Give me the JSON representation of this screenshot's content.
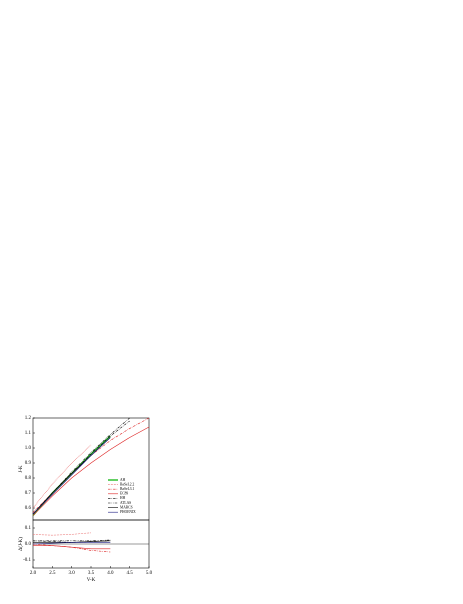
{
  "chart_data": [
    {
      "type": "line",
      "ylabel": "J-K",
      "xlim": [
        2.0,
        5.0
      ],
      "ylim": [
        0.52,
        1.2
      ],
      "yticks": [
        0.6,
        0.7,
        0.8,
        0.9,
        {
          "value": 1.0,
          "label": "1.0"
        },
        1.1,
        1.2
      ],
      "x": [
        2.0,
        2.5,
        3.0,
        3.5,
        4.0,
        4.5,
        5.0
      ],
      "legend": "lower right",
      "series": [
        {
          "name": "AH",
          "color": "#22bb22",
          "style": "thick",
          "values": [
            0.55,
            0.7,
            0.83,
            0.96,
            1.08,
            null,
            null
          ]
        },
        {
          "name": "BaSeL2.2",
          "color": "#dd2222",
          "style": "dotted",
          "values": [
            0.6,
            0.76,
            0.9,
            1.02,
            null,
            null,
            null
          ]
        },
        {
          "name": "BaSeL3.1",
          "color": "#dd2222",
          "style": "dashdot",
          "values": [
            0.57,
            0.7,
            0.83,
            0.95,
            1.05,
            1.13,
            1.2
          ]
        },
        {
          "name": "EC89",
          "color": "#dd2222",
          "style": "solid",
          "values": [
            0.55,
            0.68,
            0.8,
            0.9,
            0.99,
            1.07,
            1.14
          ]
        },
        {
          "name": "HH",
          "color": "#000000",
          "style": "dashdot",
          "values": [
            0.56,
            0.7,
            0.83,
            0.96,
            1.08,
            1.18,
            null
          ]
        },
        {
          "name": "ATLAS",
          "color": "#000000",
          "style": "dashdotdot",
          "values": [
            0.56,
            0.7,
            0.84,
            0.97,
            1.09,
            1.2,
            null
          ]
        },
        {
          "name": "MARCS",
          "color": "#000000",
          "style": "solid",
          "values": [
            0.56,
            0.7,
            0.83,
            0.95,
            1.07,
            null,
            null
          ]
        },
        {
          "name": "PHOENIX",
          "color": "#1a1a80",
          "style": "solid",
          "values": [
            0.56,
            0.69,
            0.82,
            0.95,
            1.07,
            null,
            null
          ]
        }
      ]
    },
    {
      "type": "line",
      "xlabel": "V-K",
      "ylabel": "Δ(J-K)",
      "xlim": [
        2.0,
        5.0
      ],
      "xticks": [
        {
          "value": 2.0,
          "label": "2.0"
        },
        2.5,
        {
          "value": 3.0,
          "label": "3.0"
        },
        3.5,
        {
          "value": 4.0,
          "label": "4.0"
        },
        4.5,
        {
          "value": 5.0,
          "label": "5.0"
        }
      ],
      "ylim": [
        -0.15,
        0.15
      ],
      "yticks": [
        -0.1,
        {
          "value": 0.0,
          "label": "0.0"
        },
        0.1
      ],
      "x": [
        2.0,
        2.5,
        3.0,
        3.5,
        4.0
      ],
      "series": [
        {
          "color": "#dd2222",
          "style": "dotted",
          "values": [
            0.06,
            0.055,
            0.06,
            0.07,
            null
          ]
        },
        {
          "color": "#dd2222",
          "style": "dashdot",
          "values": [
            0.0,
            -0.01,
            -0.02,
            -0.04,
            -0.05
          ]
        },
        {
          "color": "#dd2222",
          "style": "solid",
          "values": [
            -0.01,
            -0.01,
            -0.02,
            -0.03,
            -0.03
          ]
        },
        {
          "color": "#000000",
          "style": "dashdot",
          "values": [
            0.02,
            0.015,
            0.01,
            0.015,
            0.02
          ]
        },
        {
          "color": "#000000",
          "style": "dashdotdot",
          "values": [
            0.02,
            0.02,
            0.02,
            0.02,
            0.025
          ]
        },
        {
          "color": "#000000",
          "style": "solid",
          "values": [
            0.01,
            0.01,
            0.01,
            0.015,
            0.02
          ]
        },
        {
          "color": "#1a1a80",
          "style": "solid",
          "values": [
            0.0,
            0.005,
            0.01,
            0.01,
            0.01
          ]
        }
      ]
    }
  ]
}
